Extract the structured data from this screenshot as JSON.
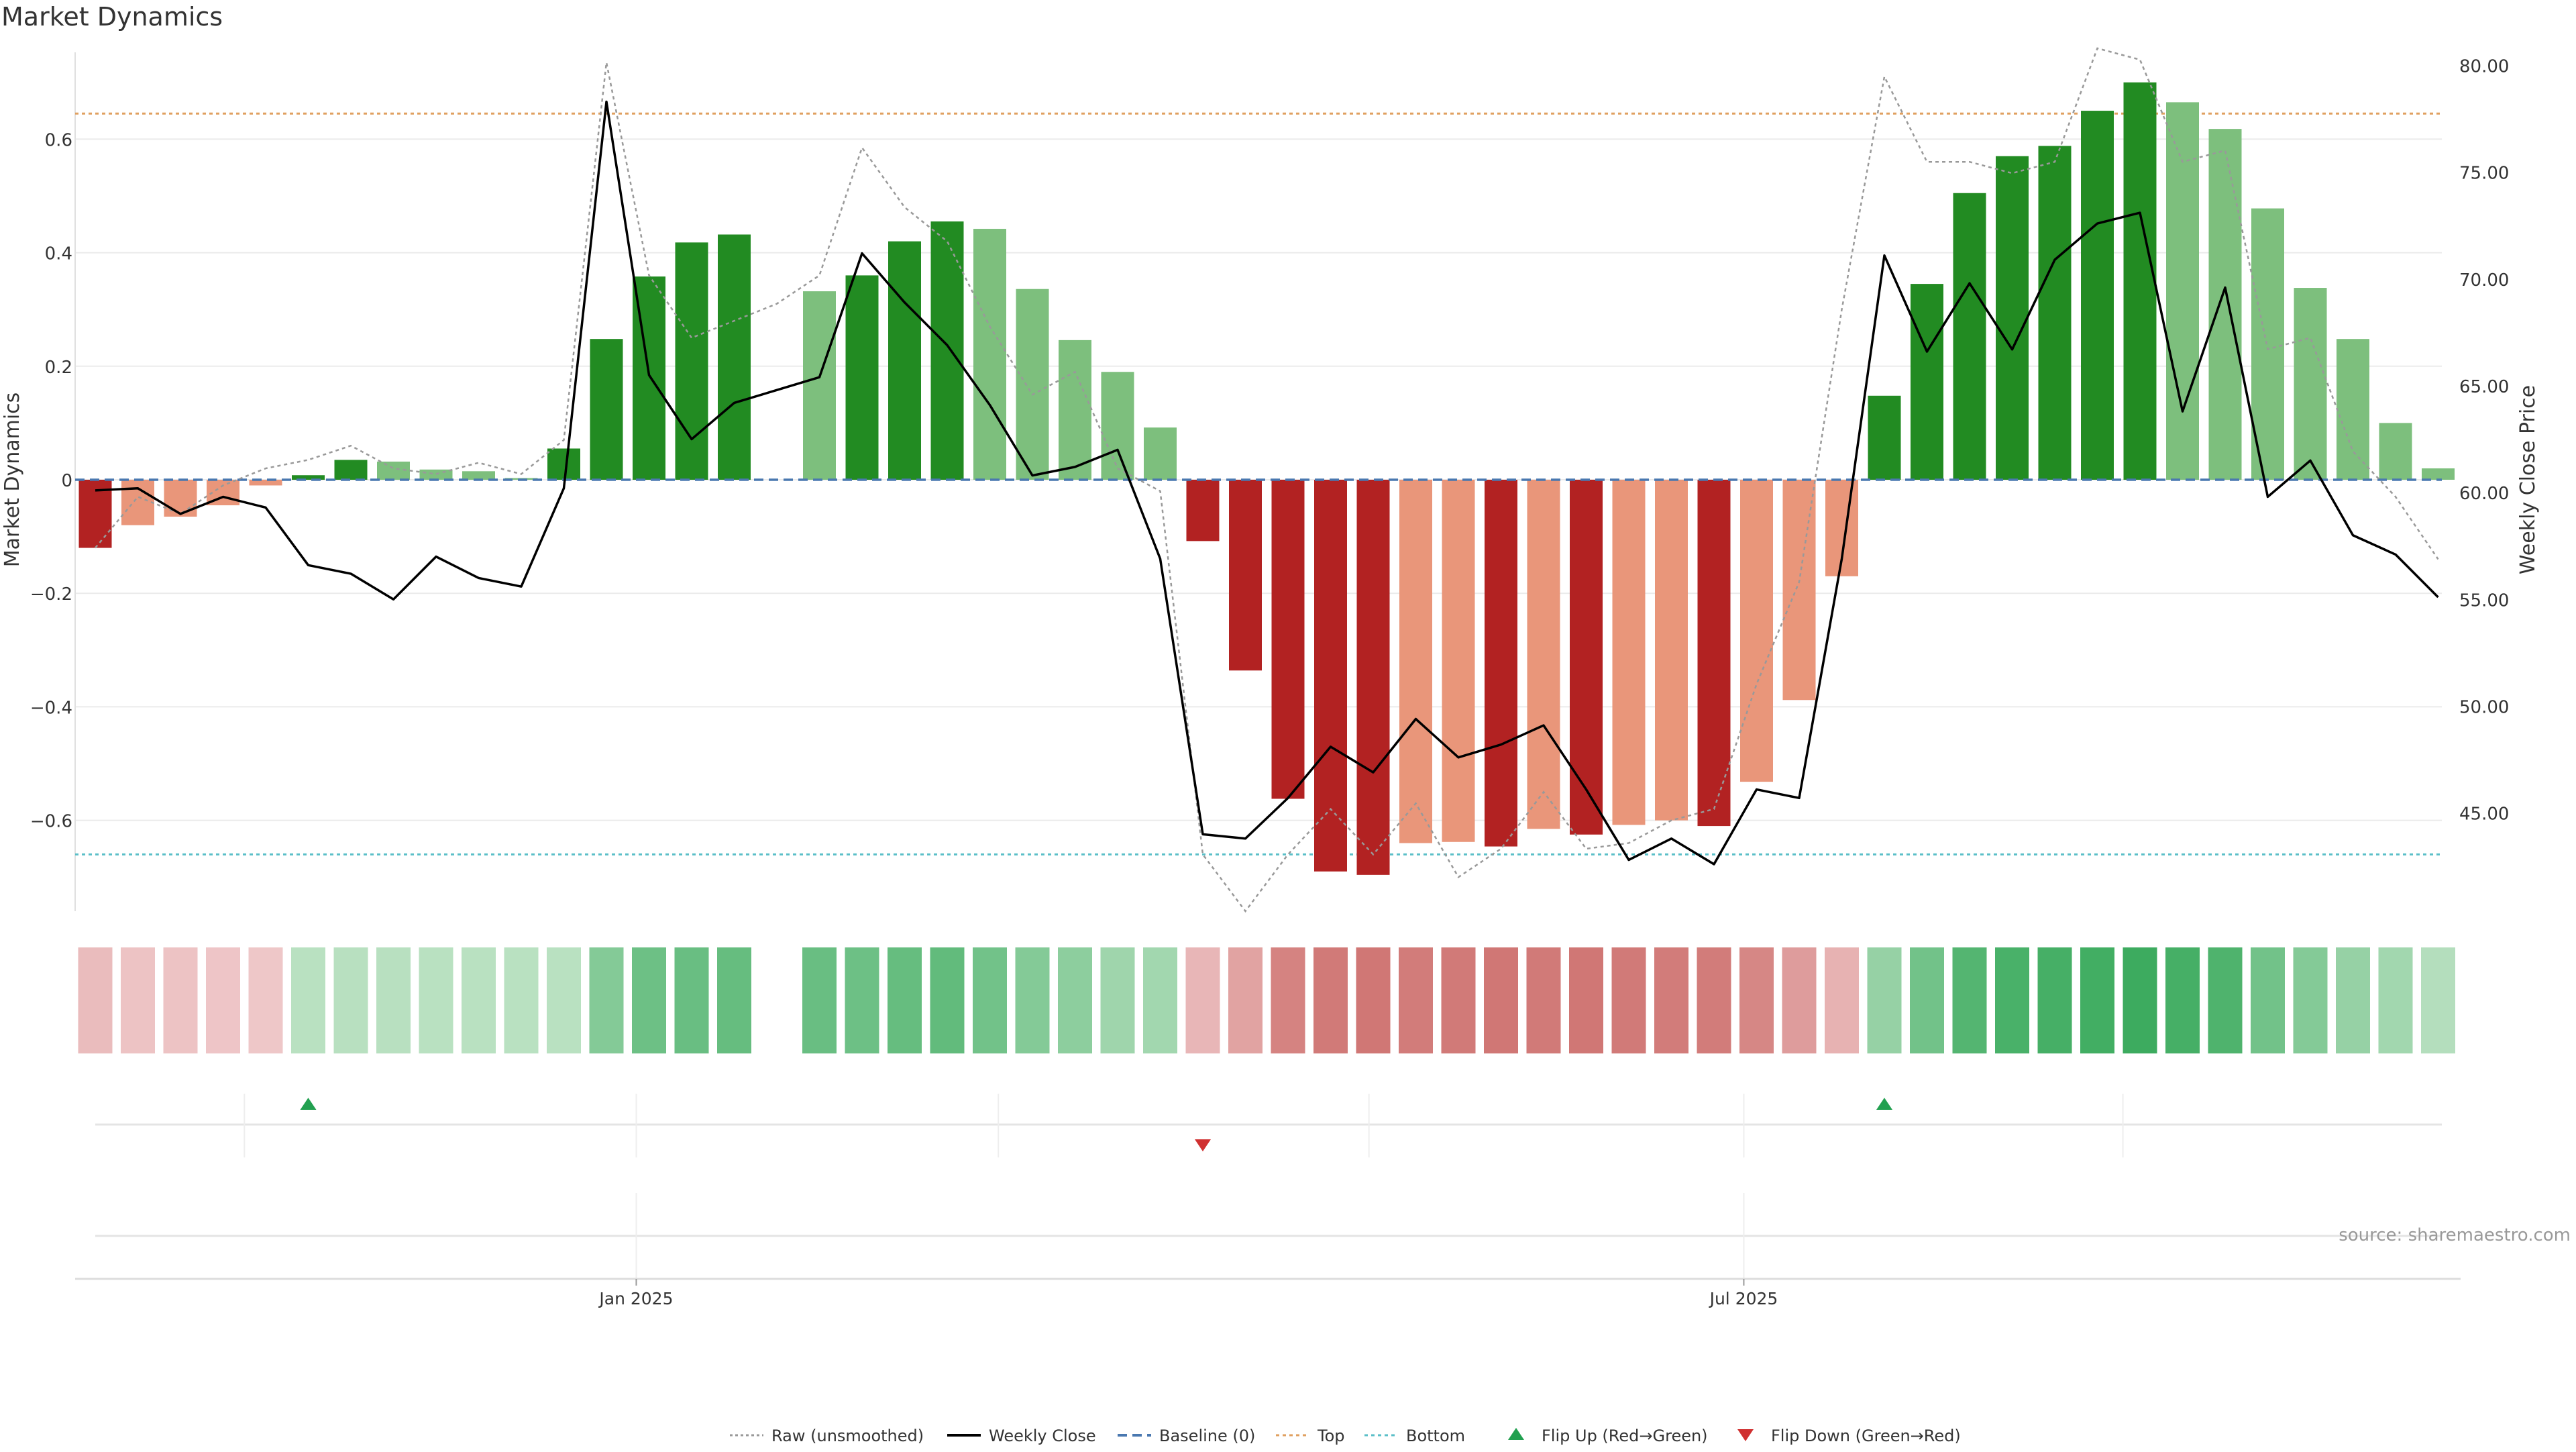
{
  "chart_data": {
    "type": "bar",
    "title": "Market Dynamics",
    "ylabel_left": "Market Dynamics",
    "ylabel_right": "Weekly Close Price",
    "source": "source: sharemaestro.com",
    "x_ticks": [
      "Jan 2025",
      "Jul 2025"
    ],
    "left_ylim": [
      -0.76,
      0.76
    ],
    "left_ticks": [
      -0.6,
      -0.4,
      -0.2,
      0,
      0.2,
      0.4,
      0.6
    ],
    "left_tick_labels": [
      "−0.6",
      "−0.4",
      "−0.2",
      "0",
      "0.2",
      "0.4",
      "0.6"
    ],
    "right_ylim": [
      40.4,
      80.8
    ],
    "right_ticks": [
      45,
      50,
      55,
      60,
      65,
      70,
      75,
      80
    ],
    "right_tick_labels": [
      "45.00",
      "50.00",
      "55.00",
      "60.00",
      "65.00",
      "70.00",
      "75.00",
      "80.00"
    ],
    "baseline": 0,
    "top_threshold": 0.645,
    "bottom_threshold": -0.66,
    "grid": true,
    "legend_position": "bottom-center",
    "colors": {
      "strong_green": "#228B22",
      "weak_green": "#7DBF7D",
      "strong_red": "#B22222",
      "weak_red": "#E9967A",
      "close_line": "#000000",
      "raw_line": "#999999",
      "baseline": "#4A78B0",
      "top": "#E0A060",
      "bottom": "#5BBFC8",
      "flip_up": "#22A050",
      "flip_down": "#D03030"
    },
    "legend": [
      {
        "key": "raw",
        "label": "Raw (unsmoothed)"
      },
      {
        "key": "close",
        "label": "Weekly Close"
      },
      {
        "key": "baseline",
        "label": "Baseline (0)"
      },
      {
        "key": "top",
        "label": "Top"
      },
      {
        "key": "bottom",
        "label": "Bottom"
      },
      {
        "key": "flip_up",
        "label": "Flip Up (Red→Green)"
      },
      {
        "key": "flip_down",
        "label": "Flip Down (Green→Red)"
      }
    ],
    "series": [
      {
        "key": "dynamics",
        "type": "bar",
        "values": [
          -0.12,
          -0.08,
          -0.065,
          -0.045,
          -0.01,
          0.008,
          0.035,
          0.032,
          0.018,
          0.015,
          0.003,
          0.055,
          0.248,
          0.358,
          0.418,
          0.432,
          null,
          0.332,
          0.36,
          0.42,
          0.455,
          0.442,
          0.336,
          0.246,
          0.19,
          0.092,
          -0.108,
          -0.336,
          -0.562,
          -0.69,
          -0.696,
          -0.64,
          -0.638,
          -0.646,
          -0.615,
          -0.625,
          -0.608,
          -0.6,
          -0.61,
          -0.532,
          -0.388,
          -0.17,
          0.148,
          0.345,
          0.505,
          0.57,
          0.588,
          0.65,
          0.7,
          0.665,
          0.618,
          0.478,
          0.338,
          0.248,
          0.1,
          0.02
        ],
        "strength": [
          "strong",
          "weak",
          "weak",
          "weak",
          "weak",
          "strong",
          "strong",
          "weak",
          "weak",
          "weak",
          "weak",
          "strong",
          "strong",
          "strong",
          "strong",
          "strong",
          null,
          "weak",
          "strong",
          "strong",
          "strong",
          "weak",
          "weak",
          "weak",
          "weak",
          "weak",
          "strong",
          "strong",
          "strong",
          "strong",
          "strong",
          "weak",
          "weak",
          "strong",
          "weak",
          "strong",
          "weak",
          "weak",
          "strong",
          "weak",
          "weak",
          "weak",
          "strong",
          "strong",
          "strong",
          "strong",
          "strong",
          "strong",
          "strong",
          "weak",
          "weak",
          "weak",
          "weak",
          "weak",
          "weak",
          "weak"
        ]
      },
      {
        "key": "close",
        "name": "Weekly Close",
        "type": "line",
        "values": [
          60.1,
          60.2,
          59.0,
          59.8,
          59.3,
          56.6,
          56.2,
          55.0,
          57.0,
          56.0,
          55.6,
          60.2,
          78.3,
          65.5,
          62.5,
          64.2,
          64.8,
          65.4,
          71.2,
          68.9,
          66.9,
          64.1,
          60.8,
          61.2,
          62.0,
          56.9,
          44.0,
          43.8,
          45.7,
          48.1,
          46.9,
          49.4,
          47.6,
          48.2,
          49.1,
          46.1,
          42.8,
          43.8,
          42.6,
          46.1,
          45.7,
          56.9,
          71.1,
          66.6,
          69.8,
          66.7,
          70.9,
          72.6,
          73.1,
          63.8,
          69.6,
          59.8,
          61.5,
          58.0,
          57.1,
          55.1
        ]
      },
      {
        "key": "raw",
        "name": "Raw (unsmoothed)",
        "type": "line",
        "values": [
          -0.12,
          -0.03,
          -0.06,
          -0.01,
          0.02,
          0.035,
          0.06,
          0.02,
          0.01,
          0.03,
          0.01,
          0.07,
          0.735,
          0.36,
          0.25,
          0.28,
          0.31,
          0.36,
          0.585,
          0.48,
          0.42,
          0.27,
          0.15,
          0.19,
          0.02,
          -0.02,
          -0.66,
          -0.76,
          -0.66,
          -0.58,
          -0.66,
          -0.57,
          -0.7,
          -0.65,
          -0.55,
          -0.65,
          -0.64,
          -0.6,
          -0.58,
          -0.36,
          -0.18,
          0.3,
          0.71,
          0.56,
          0.56,
          0.54,
          0.56,
          0.76,
          0.74,
          0.56,
          0.58,
          0.23,
          0.25,
          0.05,
          -0.03,
          -0.14
        ]
      },
      {
        "key": "strip",
        "type": "heat-strip",
        "values": [
          -0.2,
          -0.15,
          -0.15,
          -0.13,
          -0.12,
          0.15,
          0.16,
          0.16,
          0.15,
          0.15,
          0.15,
          0.15,
          0.45,
          0.58,
          0.6,
          0.62,
          null,
          0.6,
          0.58,
          0.62,
          0.64,
          0.55,
          0.45,
          0.4,
          0.3,
          0.28,
          -0.25,
          -0.4,
          -0.65,
          -0.72,
          -0.74,
          -0.7,
          -0.72,
          -0.74,
          -0.72,
          -0.74,
          -0.72,
          -0.7,
          -0.7,
          -0.62,
          -0.45,
          -0.28,
          0.35,
          0.55,
          0.72,
          0.78,
          0.8,
          0.82,
          0.85,
          0.8,
          0.75,
          0.55,
          0.45,
          0.35,
          0.28,
          0.18
        ]
      }
    ],
    "flip_up_indices": [
      5,
      42
    ],
    "flip_down_indices": [
      26
    ],
    "event_tick_indices": [
      3.5,
      12.7,
      21.2,
      29.9,
      38.7,
      47.6
    ]
  }
}
